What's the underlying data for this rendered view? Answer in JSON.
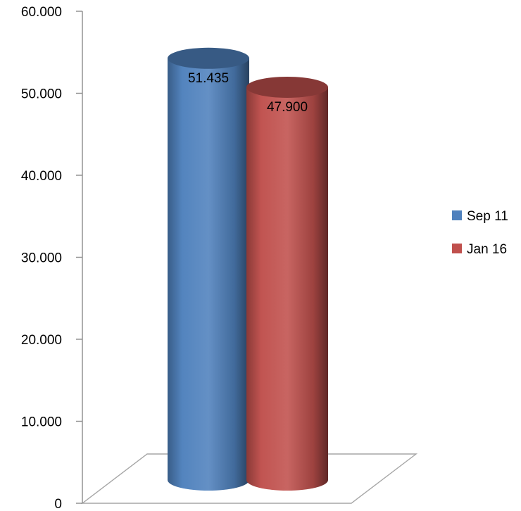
{
  "chart_data": {
    "type": "bar",
    "style": "3d-cylinder",
    "categories": [
      ""
    ],
    "series": [
      {
        "name": "Sep 11",
        "values": [
          51.435
        ],
        "label": "51.435",
        "color": "#4F81BD"
      },
      {
        "name": "Jan 16",
        "values": [
          47.9
        ],
        "label": "47.900",
        "color": "#C0504D"
      }
    ],
    "title": "",
    "xlabel": "",
    "ylabel": "",
    "ylim": [
      0,
      60
    ],
    "yticks": [
      {
        "value": 0,
        "label": "0"
      },
      {
        "value": 10,
        "label": "10.000"
      },
      {
        "value": 20,
        "label": "20.000"
      },
      {
        "value": 30,
        "label": "30.000"
      },
      {
        "value": 40,
        "label": "40.000"
      },
      {
        "value": 50,
        "label": "50.000"
      },
      {
        "value": 60,
        "label": "60.000"
      }
    ],
    "grid": false,
    "legend": "right"
  }
}
